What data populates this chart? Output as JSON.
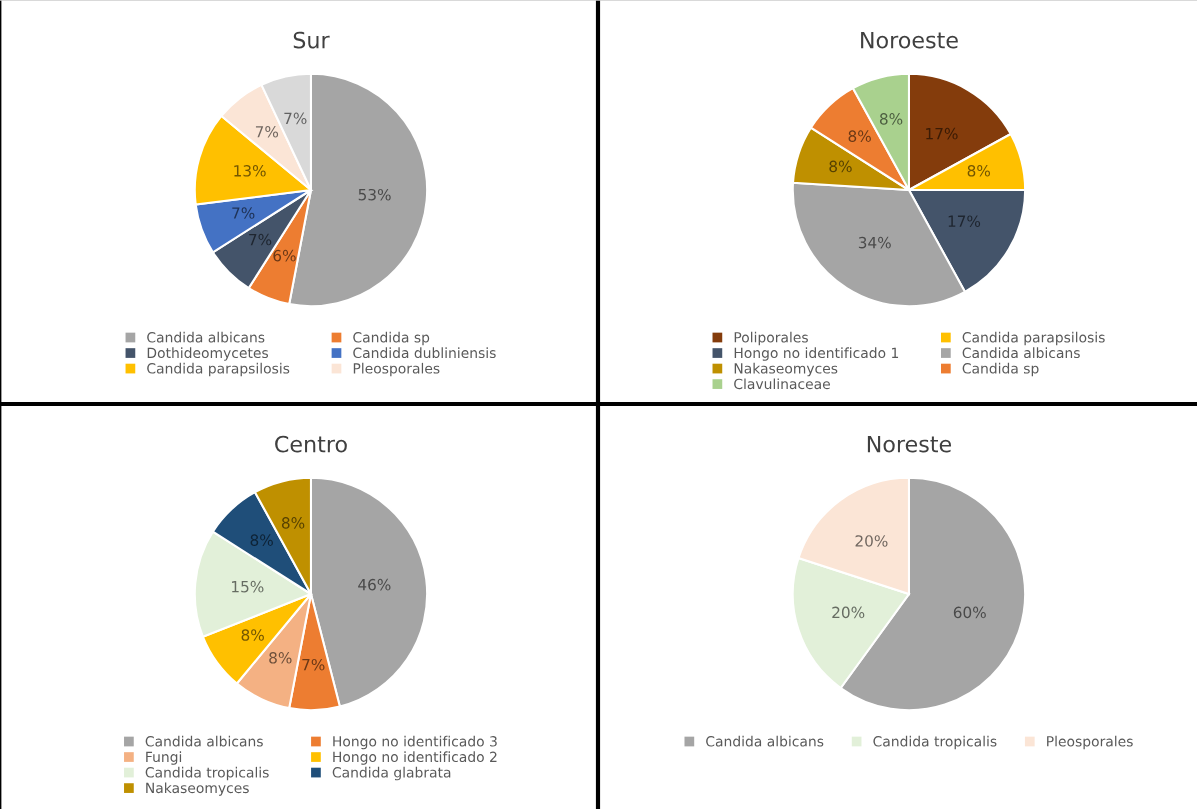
{
  "chart_data": [
    {
      "type": "pie",
      "title": "Sur",
      "legend": "bottom",
      "categories": [
        "Candida albicans",
        "Candida sp",
        "Dothideomycetes",
        "Candida dubliniensis",
        "Candida parapsilosis",
        "Pleosporales",
        null
      ],
      "values": [
        53,
        6,
        7,
        7,
        13,
        7,
        7
      ],
      "value_labels": [
        "53%",
        "6%",
        "7%",
        "7%",
        "13%",
        "7%",
        "7%"
      ],
      "colors": [
        "#a5a5a5",
        "#ed7d31",
        "#44546a",
        "#4472c4",
        "#ffc000",
        "#fbe5d6",
        "#d9d9d9"
      ]
    },
    {
      "type": "pie",
      "title": "Noroeste",
      "legend": "bottom",
      "categories": [
        "Poliporales",
        "Candida parapsilosis",
        "Hongo no identificado 1",
        "Candida albicans",
        "Nakaseomyces",
        "Candida sp",
        "Clavulinaceae"
      ],
      "values": [
        17,
        8,
        17,
        34,
        8,
        8,
        8
      ],
      "value_labels": [
        "17%",
        "8%",
        "17%",
        "34%",
        "8%",
        "8%",
        "8%"
      ],
      "colors": [
        "#843c0c",
        "#ffc000",
        "#44546a",
        "#a5a5a5",
        "#bf9000",
        "#ed7d31",
        "#a9d18e"
      ]
    },
    {
      "type": "pie",
      "title": "Centro",
      "legend": "bottom",
      "categories": [
        "Candida albicans",
        "Hongo no identificado 3",
        "Fungi",
        "Hongo no identificado 2",
        "Candida tropicalis",
        "Candida glabrata",
        "Nakaseomyces"
      ],
      "values": [
        46,
        7,
        8,
        8,
        15,
        8,
        8
      ],
      "value_labels": [
        "46%",
        "7%",
        "8%",
        "8%",
        "15%",
        "8%",
        "8%"
      ],
      "colors": [
        "#a5a5a5",
        "#ed7d31",
        "#f4b183",
        "#ffc000",
        "#e2f0d9",
        "#1f4e79",
        "#bf9000"
      ]
    },
    {
      "type": "pie",
      "title": "Noreste",
      "legend": "bottom",
      "categories": [
        "Candida albicans",
        "Candida tropicalis",
        "Pleosporales"
      ],
      "values": [
        60,
        20,
        20
      ],
      "value_labels": [
        "60%",
        "20%",
        "20%"
      ],
      "colors": [
        "#a5a5a5",
        "#e2f0d9",
        "#fbe5d6"
      ]
    }
  ]
}
